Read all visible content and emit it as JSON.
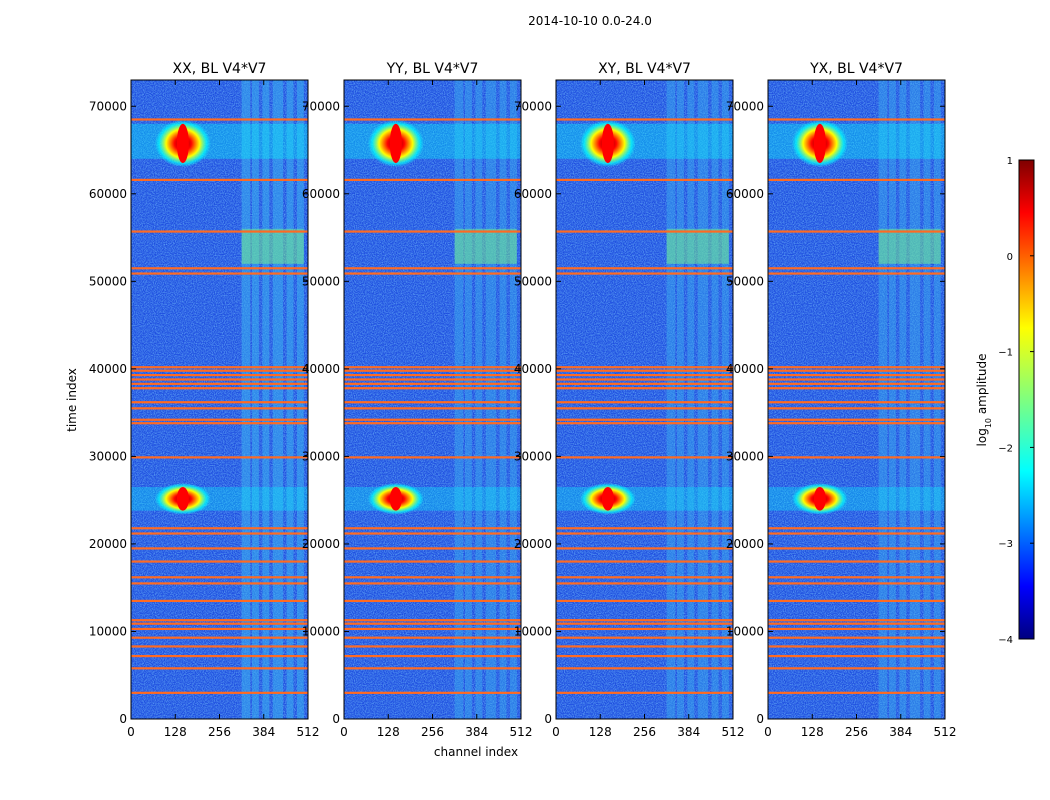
{
  "figure": {
    "suptitle": "2014-10-10 0.0-24.0",
    "xlabel": "channel index",
    "ylabel": "time index",
    "colorbar_label_prefix": "log",
    "colorbar_label_sub": "10",
    "colorbar_label_suffix": " amplitude"
  },
  "chart_data": {
    "type": "heatmap",
    "title": "2014-10-10 0.0-24.0",
    "xlabel": "channel index",
    "ylabel": "time index",
    "xlim": [
      0,
      512
    ],
    "ylim": [
      0,
      73000
    ],
    "xticks": [
      0,
      128,
      256,
      384,
      512
    ],
    "yticks": [
      0,
      10000,
      20000,
      30000,
      40000,
      50000,
      60000,
      70000
    ],
    "panels": [
      {
        "title": "XX, BL V4*V7",
        "ytick_labels": [
          "0",
          "10000",
          "20000",
          "30000",
          "40000",
          "50000",
          "60000",
          "70000"
        ]
      },
      {
        "title": "YY, BL V4*V7",
        "ytick_labels": [
          "0",
          "10000",
          "20000",
          "30000",
          "40000",
          "50000",
          "60000",
          "70000"
        ]
      },
      {
        "title": "XY, BL V4*V7",
        "ytick_labels": [
          "0",
          "10000",
          "20000",
          "30000",
          "40000",
          "50000",
          "60000",
          "70000"
        ]
      },
      {
        "title": "YX, BL V4*V7",
        "ytick_labels": [
          "0",
          "10000",
          "20000",
          "30000",
          "40000",
          "50000",
          "60000",
          "70000"
        ]
      }
    ],
    "colorbar": {
      "label": "log10 amplitude",
      "range": [
        -4,
        1
      ],
      "ticks": [
        1,
        0,
        -1,
        -2,
        -3,
        -4
      ],
      "tick_labels": [
        "1",
        "0",
        "−1",
        "−2",
        "−3",
        "−4"
      ]
    },
    "flagged_rows_time": [
      3000,
      5800,
      7200,
      8300,
      9300,
      10300,
      10900,
      11300,
      13500,
      15500,
      16200,
      18000,
      19500,
      21200,
      21800,
      29900,
      33800,
      34200,
      35500,
      36200,
      37800,
      38300,
      38800,
      39300,
      39800,
      40200,
      50900,
      51500,
      55700,
      61600,
      68500
    ],
    "bright_features": [
      {
        "channel": 150,
        "time": 65500,
        "span": [
          63500,
          68000
        ]
      },
      {
        "channel": 150,
        "time": 25000,
        "span": [
          23800,
          26500
        ]
      }
    ],
    "rfi_channel_bands": [
      [
        320,
        345
      ],
      [
        350,
        370
      ],
      [
        380,
        400
      ],
      [
        410,
        440
      ],
      [
        450,
        470
      ],
      [
        480,
        500
      ]
    ],
    "colors": {
      "flag": "#ff6a22",
      "background": "#1f4fe0",
      "band": "#3ab0f0"
    }
  }
}
